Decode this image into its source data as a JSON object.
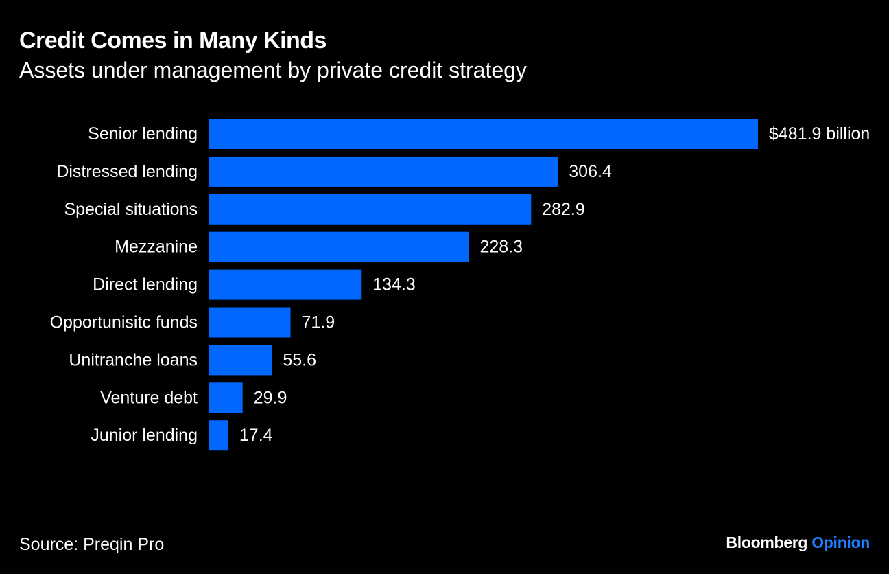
{
  "header": {
    "title": "Credit Comes in Many Kinds",
    "subtitle": "Assets under management by private credit strategy"
  },
  "footer": {
    "source": "Source: Preqin Pro",
    "brand_primary": "Bloomberg",
    "brand_secondary": "Opinion"
  },
  "colors": {
    "background": "#000000",
    "bar": "#0068ff",
    "text": "#ffffff",
    "brand_accent": "#1f7cff"
  },
  "chart_data": {
    "type": "bar",
    "orientation": "horizontal",
    "title": "Credit Comes in Many Kinds",
    "subtitle": "Assets under management by private credit strategy",
    "xlabel": "",
    "ylabel": "",
    "unit": "$ billion",
    "grid": false,
    "legend": "none",
    "categories": [
      "Senior lending",
      "Distressed lending",
      "Special situations",
      "Mezzanine",
      "Direct lending",
      "Opportunisitc funds",
      "Unitranche loans",
      "Venture debt",
      "Junior lending"
    ],
    "values": [
      481.9,
      306.4,
      282.9,
      228.3,
      134.3,
      71.9,
      55.6,
      29.9,
      17.4
    ],
    "value_labels": [
      "$481.9 billion",
      "306.4",
      "282.9",
      "228.3",
      "134.3",
      "71.9",
      "55.6",
      "29.9",
      "17.4"
    ],
    "xlim": [
      0,
      481.9
    ]
  }
}
